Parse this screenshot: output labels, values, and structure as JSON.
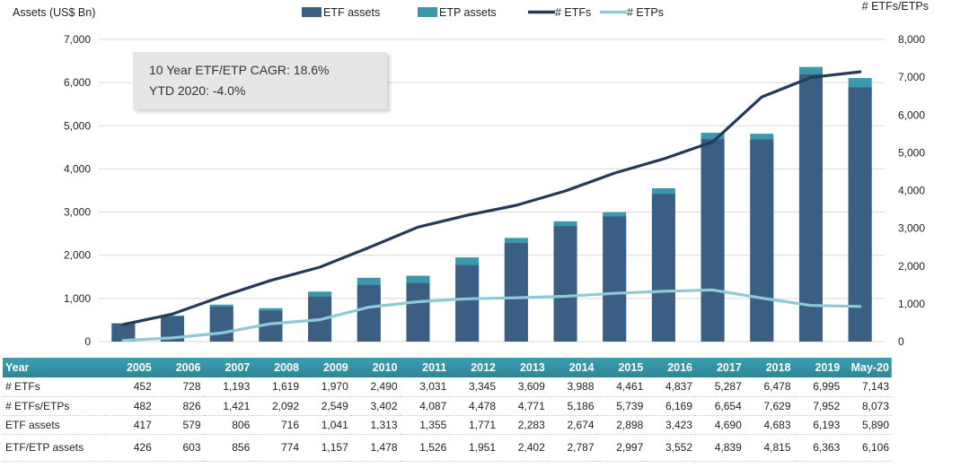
{
  "chart_data": {
    "type": "bar",
    "categories": [
      "2005",
      "2006",
      "2007",
      "2008",
      "2009",
      "2010",
      "2011",
      "2012",
      "2013",
      "2014",
      "2015",
      "2016",
      "2017",
      "2018",
      "2019",
      "May-20"
    ],
    "series": [
      {
        "name": "ETF assets",
        "kind": "bar",
        "axis": "left",
        "color": "#3a5f82",
        "values": [
          417,
          579,
          806,
          716,
          1041,
          1313,
          1355,
          1771,
          2283,
          2674,
          2898,
          3423,
          4690,
          4683,
          6193,
          5890
        ]
      },
      {
        "name": "ETP assets",
        "kind": "bar",
        "axis": "left",
        "color": "#3b97ab",
        "values": [
          426,
          603,
          856,
          774,
          1157,
          1478,
          1526,
          1951,
          2402,
          2787,
          2997,
          3552,
          4839,
          4815,
          6363,
          6106
        ]
      },
      {
        "name": "# ETFs",
        "kind": "line",
        "axis": "right",
        "color": "#243b58",
        "values": [
          452,
          728,
          1193,
          1619,
          1970,
          2490,
          3031,
          3345,
          3609,
          3988,
          4461,
          4837,
          5287,
          6478,
          6995,
          7143
        ]
      },
      {
        "name": "# ETPs",
        "kind": "line",
        "axis": "right",
        "color": "#8ec9d6",
        "values": [
          30,
          98,
          228,
          473,
          579,
          912,
          1056,
          1133,
          1162,
          1198,
          1278,
          1332,
          1367,
          1151,
          957,
          930
        ]
      }
    ],
    "ylabel": "Assets (US$ Bn)",
    "y2label": "# ETFs/ETPs",
    "ylim": [
      0,
      7000
    ],
    "y2lim": [
      0,
      8000
    ],
    "yticks": [
      "0",
      "1,000",
      "2,000",
      "3,000",
      "4,000",
      "5,000",
      "6,000",
      "7,000"
    ],
    "y2ticks": [
      "0",
      "1,000",
      "2,000",
      "3,000",
      "4,000",
      "5,000",
      "6,000",
      "7,000",
      "8,000"
    ],
    "legend_position": "top-center",
    "grid": true
  },
  "annotation": {
    "line1": "10 Year ETF/ETP CAGR: 18.6%",
    "line2": "YTD 2020: -4.0%"
  },
  "table": {
    "header": "Year",
    "rows": [
      {
        "label": "# ETFs",
        "cells": [
          "452",
          "728",
          "1,193",
          "1,619",
          "1,970",
          "2,490",
          "3,031",
          "3,345",
          "3,609",
          "3,988",
          "4,461",
          "4,837",
          "5,287",
          "6,478",
          "6,995",
          "7,143"
        ]
      },
      {
        "label": "# ETFs/ETPs",
        "cells": [
          "482",
          "826",
          "1,421",
          "2,092",
          "2,549",
          "3,402",
          "4,087",
          "4,478",
          "4,771",
          "5,186",
          "5,739",
          "6,169",
          "6,654",
          "7,629",
          "7,952",
          "8,073"
        ]
      },
      {
        "label": "ETF assets",
        "cells": [
          "417",
          "579",
          "806",
          "716",
          "1,041",
          "1,313",
          "1,355",
          "1,771",
          "2,283",
          "2,674",
          "2,898",
          "3,423",
          "4,690",
          "4,683",
          "6,193",
          "5,890"
        ]
      },
      {
        "label": "ETF/ETP assets",
        "cells": [
          "426",
          "603",
          "856",
          "774",
          "1,157",
          "1,478",
          "1,526",
          "1,951",
          "2,402",
          "2,787",
          "2,997",
          "3,552",
          "4,839",
          "4,815",
          "6,363",
          "6,106"
        ]
      }
    ]
  }
}
